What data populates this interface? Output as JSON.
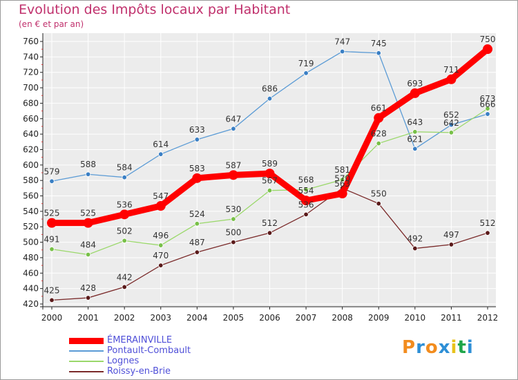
{
  "title": "Evolution des Impôts locaux par Habitant",
  "subtitle": "(en € et par an)",
  "logo": {
    "text": "Proxiti",
    "colors": [
      "#f28c1e",
      "#2e8fd6",
      "#f28c1e",
      "#2e8fd6",
      "#e8c21b",
      "#1fa64a",
      "#2e8fd6"
    ]
  },
  "chart_data": {
    "type": "line",
    "title": "Evolution des Impôts locaux par Habitant",
    "subtitle": "(en € et par an)",
    "xlabel": "",
    "ylabel": "",
    "x": [
      "2000",
      "2001",
      "2002",
      "2003",
      "2004",
      "2005",
      "2006",
      "2007",
      "2008",
      "2009",
      "2010",
      "2011",
      "2012"
    ],
    "ylim": [
      420,
      760
    ],
    "yticks": [
      420,
      440,
      460,
      480,
      500,
      520,
      540,
      560,
      580,
      600,
      620,
      640,
      660,
      680,
      700,
      720,
      740,
      760
    ],
    "grid": true,
    "legend_position": "bottom-left",
    "series": [
      {
        "name": "ÉMERAINVILLE",
        "color": "#ff0000",
        "emphasis": true,
        "values": [
          525,
          525,
          536,
          547,
          583,
          587,
          589,
          554,
          563,
          661,
          693,
          711,
          750
        ]
      },
      {
        "name": "Pontault-Combault",
        "color": "#5b9bd5",
        "dot": "#3a7fc4",
        "values": [
          579,
          588,
          584,
          614,
          633,
          647,
          686,
          719,
          747,
          745,
          621,
          652,
          666
        ]
      },
      {
        "name": "Lognes",
        "color": "#9ad86a",
        "dot": "#78c048",
        "values": [
          491,
          484,
          502,
          496,
          524,
          530,
          567,
          568,
          581,
          628,
          643,
          642,
          673
        ]
      },
      {
        "name": "Roissy-en-Brie",
        "color": "#7a2a2a",
        "dot": "#5a1a1a",
        "values": [
          425,
          428,
          442,
          470,
          487,
          500,
          512,
          536,
          570,
          550,
          492,
          497,
          512
        ]
      }
    ],
    "data_labels": [
      {
        "series": 0,
        "labels": [
          "525",
          "525",
          "536",
          "547",
          "583",
          "587",
          "589",
          "554",
          "563",
          "661",
          "693",
          "711",
          "750"
        ]
      },
      {
        "series": 1,
        "labels": [
          "579",
          "588",
          "584",
          "614",
          "633",
          "647",
          "686",
          "719",
          "747",
          "745",
          "621",
          "652",
          "666"
        ]
      },
      {
        "series": 2,
        "labels": [
          "491",
          "484",
          "502",
          "496",
          "524",
          "530",
          "567",
          "568",
          "581",
          "628",
          "643",
          "642",
          "673"
        ]
      },
      {
        "series": 3,
        "labels": [
          "425",
          "428",
          "442",
          "470",
          "487",
          "500",
          "512",
          "536",
          "570",
          "550",
          "492",
          "497",
          "512"
        ]
      }
    ]
  }
}
